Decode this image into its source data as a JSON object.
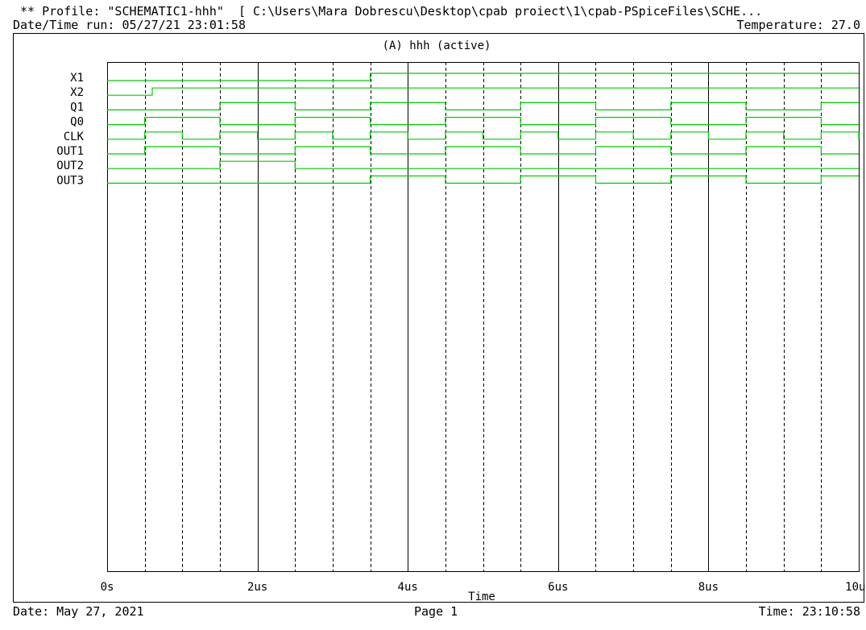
{
  "header": {
    "profile_line": " ** Profile: \"SCHEMATIC1-hhh\"  [ C:\\Users\\Mara Dobrescu\\Desktop\\cpab proiect\\1\\cpab-PSpiceFiles\\SCHE...",
    "datetime_run": "Date/Time run: 05/27/21 23:01:58",
    "temperature": "Temperature: 27.0"
  },
  "plot": {
    "title": "(A) hhh (active)"
  },
  "footer": {
    "date": "Date: May 27, 2021",
    "page": "Page 1",
    "time": "Time: 23:10:58"
  },
  "colors": {
    "trace": "#00cc00",
    "axis": "#000000",
    "grid": "#000000"
  },
  "chart_data": {
    "type": "line",
    "subtype": "digital-timing",
    "title": "(A) hhh (active)",
    "xlabel": "Time",
    "x_unit": "us",
    "xlim": [
      0,
      10
    ],
    "x_ticks": [
      0,
      2,
      4,
      6,
      8,
      10
    ],
    "x_tick_labels": [
      "0s",
      "2us",
      "4us",
      "6us",
      "8us",
      "10us"
    ],
    "grid": "vertical dashed every 0.5us, solid at major ticks",
    "series": [
      {
        "name": "X1",
        "initial": 0,
        "edges": [
          3.5
        ]
      },
      {
        "name": "X2",
        "initial": 0,
        "edges": [
          0.6
        ]
      },
      {
        "name": "Q1",
        "initial": 0,
        "edges": [
          1.5,
          2.5,
          3.5,
          4.5,
          5.5,
          6.5,
          7.5,
          8.5,
          9.5
        ]
      },
      {
        "name": "Q0",
        "initial": 0,
        "edges": [
          0.5,
          1.5,
          2.5,
          3.5,
          4.5,
          5.5,
          6.5,
          7.5,
          8.5,
          9.5
        ]
      },
      {
        "name": "CLK",
        "initial": 0,
        "edges": [
          0.5,
          1.0,
          1.5,
          2.0,
          2.5,
          3.0,
          3.5,
          4.0,
          4.5,
          5.0,
          5.5,
          6.0,
          6.5,
          7.0,
          7.5,
          8.0,
          8.5,
          9.0,
          9.5,
          10.0
        ]
      },
      {
        "name": "OUT1",
        "initial": 0,
        "edges": [
          0.5,
          1.5,
          2.5,
          3.5,
          4.5,
          5.5,
          6.5,
          7.5,
          8.5,
          9.5
        ]
      },
      {
        "name": "OUT2",
        "initial": 0,
        "edges": [
          1.5,
          2.5
        ]
      },
      {
        "name": "OUT3",
        "initial": 0,
        "edges": [
          3.5,
          4.5,
          5.5,
          6.5,
          7.5,
          8.5,
          9.5
        ]
      }
    ]
  }
}
